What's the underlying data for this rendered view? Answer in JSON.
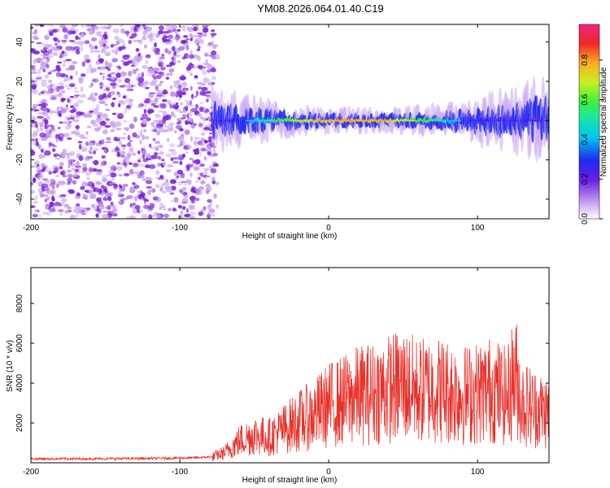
{
  "title": "YM08.2026.064.01.40.C19",
  "colors": {
    "snr_line": "#e8312a",
    "dense_cloud": "#7b22dc",
    "light_cloud": "#c9a4f2",
    "band_core": "#f0242a"
  },
  "chart_data": [
    {
      "type": "heatmap",
      "title": "",
      "xlabel": "Height of straight line (km)",
      "ylabel": "Frequency (Hz)",
      "xlim": [
        -200,
        148
      ],
      "ylim": [
        -50,
        49
      ],
      "xticks": [
        -200,
        -100,
        0,
        100
      ],
      "yticks": [
        -40,
        -20,
        0,
        20,
        40
      ],
      "colorbar": {
        "label": "Normalized spectral amplitude",
        "range": [
          0,
          0.98
        ],
        "ticks": [
          0.0,
          0.2,
          0.4,
          0.6,
          0.8
        ],
        "colormap": "rainbow (white-violet-blue-cyan-green-yellow-red-magenta)"
      },
      "regions": [
        {
          "name": "noise",
          "x_range": [
            -200,
            -78
          ],
          "freq_range": [
            -50,
            49
          ],
          "amplitude": 0.15
        },
        {
          "name": "band",
          "x_range": [
            -78,
            148
          ],
          "center_freq_hz": 0,
          "half_width_hz": 4,
          "peak_amplitude": 0.9
        }
      ]
    },
    {
      "type": "line",
      "title": "",
      "xlabel": "Height of straight line (km)",
      "ylabel": "SNR (10 * v/v)",
      "xlim": [
        -200,
        148
      ],
      "ylim": [
        0,
        9800
      ],
      "xticks": [
        -200,
        -100,
        0,
        100
      ],
      "yticks": [
        2000,
        4000,
        6000,
        8000
      ],
      "series": [
        {
          "name": "SNR",
          "x": [
            -200,
            -160,
            -120,
            -90,
            -78,
            -70,
            -60,
            -50,
            -40,
            -30,
            -20,
            -10,
            0,
            10,
            20,
            30,
            40,
            50,
            60,
            70,
            80,
            90,
            100,
            110,
            120,
            125,
            130,
            140,
            148
          ],
          "values": [
            200,
            200,
            220,
            250,
            300,
            500,
            1100,
            1400,
            1300,
            1700,
            2100,
            2400,
            2900,
            3100,
            3400,
            3500,
            3700,
            3900,
            3600,
            3700,
            3600,
            3400,
            3500,
            3700,
            3300,
            4500,
            3000,
            2700,
            2500
          ]
        }
      ]
    }
  ]
}
